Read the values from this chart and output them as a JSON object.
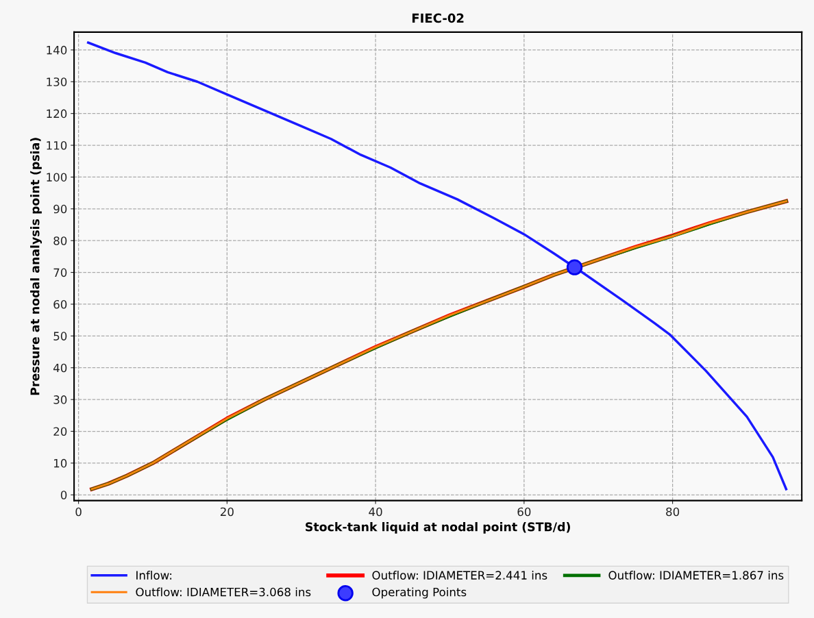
{
  "chart_data": {
    "type": "line",
    "title": "FIEC-02",
    "xlabel": "Stock-tank liquid at nodal point (STB/d)",
    "ylabel": "Pressure at nodal analysis point (psia)",
    "xlim": [
      -0.6,
      97.4
    ],
    "ylim": [
      -1.8,
      145.6
    ],
    "xticks": [
      0,
      20,
      40,
      60,
      80
    ],
    "yticks": [
      0,
      10,
      20,
      30,
      40,
      50,
      60,
      70,
      80,
      90,
      100,
      110,
      120,
      130,
      140
    ],
    "grid": true,
    "legend": "bottom",
    "marker": "none",
    "line_style": "solid",
    "series": [
      {
        "name": "Inflow:",
        "color": "#1a1aff",
        "x": [
          1.3,
          5,
          9,
          12,
          16,
          20,
          26,
          30,
          34,
          38,
          42,
          46,
          51,
          56,
          60,
          64,
          67.9,
          73.2,
          77.6,
          79.7,
          84.5,
          90,
          93.5,
          95.3
        ],
        "values": [
          142.3,
          139,
          136,
          133,
          130,
          126,
          120,
          116,
          112,
          107,
          103,
          98,
          93,
          87,
          82,
          76,
          69.9,
          61.3,
          54,
          50.3,
          39,
          24.6,
          11.9,
          1.8
        ]
      },
      {
        "name": "Outflow: IDIAMETER=2.441 ins",
        "color": "#ff0000",
        "x": [
          1.8,
          4,
          6.5,
          10,
          15,
          20,
          25,
          30,
          35,
          40,
          45,
          50,
          55,
          60,
          64,
          70,
          75,
          80,
          85,
          90,
          95.3
        ],
        "values": [
          1.8,
          3.5,
          6,
          10,
          17,
          24,
          30,
          35.5,
          41,
          46.5,
          51.5,
          56.5,
          61,
          65.5,
          69.2,
          74,
          78,
          81.6,
          85.5,
          89,
          92.4
        ]
      },
      {
        "name": "Outflow: IDIAMETER=1.867 ins",
        "color": "#007000",
        "x": [
          1.8,
          4,
          6.5,
          10,
          15,
          20,
          25,
          30,
          35,
          40,
          45,
          50,
          55,
          60,
          64,
          70,
          75,
          80,
          85,
          90,
          95.3
        ],
        "values": [
          1.8,
          3.5,
          6,
          10,
          17,
          23.8,
          30,
          35.5,
          41,
          46.3,
          51.5,
          56.3,
          61,
          65.5,
          69.2,
          74,
          77.8,
          81.4,
          85.3,
          89,
          92.4
        ]
      },
      {
        "name": "Outflow: IDIAMETER=3.068 ins",
        "color": "#ff7f0e",
        "x": [
          1.8,
          4,
          6.5,
          10,
          15,
          20,
          25,
          30,
          35,
          40,
          45,
          50,
          55,
          60,
          64,
          70,
          75,
          80,
          85,
          90,
          95.3
        ],
        "values": [
          1.8,
          3.5,
          6,
          10,
          17,
          24,
          30,
          35.5,
          41,
          46.5,
          51.5,
          56.5,
          61,
          65.5,
          69.2,
          74,
          78,
          81.4,
          85.5,
          89,
          92.4
        ]
      },
      {
        "name": "Operating Points",
        "type": "scatter",
        "marker": "circle",
        "color": "#3c3cff",
        "x": [
          66.8
        ],
        "values": [
          71.6
        ]
      }
    ]
  }
}
